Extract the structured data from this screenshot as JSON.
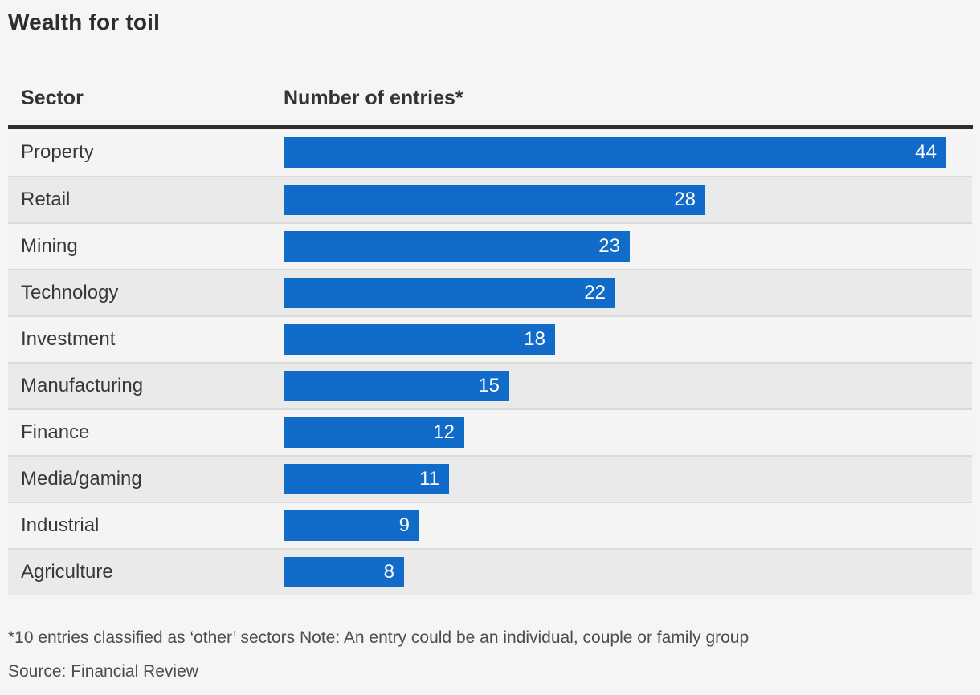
{
  "title": "Wealth for toil",
  "columns": {
    "sector": "Sector",
    "entries": "Number of entries*"
  },
  "footnote": "*10 entries classified as ‘other’ sectors Note: An entry could be an individual, couple or family group",
  "source": "Source: Financial Review",
  "colors": {
    "bar": "#116bc9",
    "background": "#f5f5f5",
    "row_even": "#f4f4f4",
    "row_odd": "#eaeaea",
    "divider": "#dadada",
    "header_rule": "#2e2e2e",
    "value_label": "#ffffff",
    "text": "#383838"
  },
  "chart_data": {
    "type": "bar",
    "orientation": "horizontal",
    "title": "Wealth for toil",
    "xlabel": "Number of entries*",
    "ylabel": "Sector",
    "categories": [
      "Property",
      "Retail",
      "Mining",
      "Technology",
      "Investment",
      "Manufacturing",
      "Finance",
      "Media/gaming",
      "Industrial",
      "Agriculture"
    ],
    "values": [
      44,
      28,
      23,
      22,
      18,
      15,
      12,
      11,
      9,
      8
    ],
    "xlim": [
      0,
      44
    ],
    "grid": false,
    "legend": false,
    "value_labels": "inside-end"
  }
}
